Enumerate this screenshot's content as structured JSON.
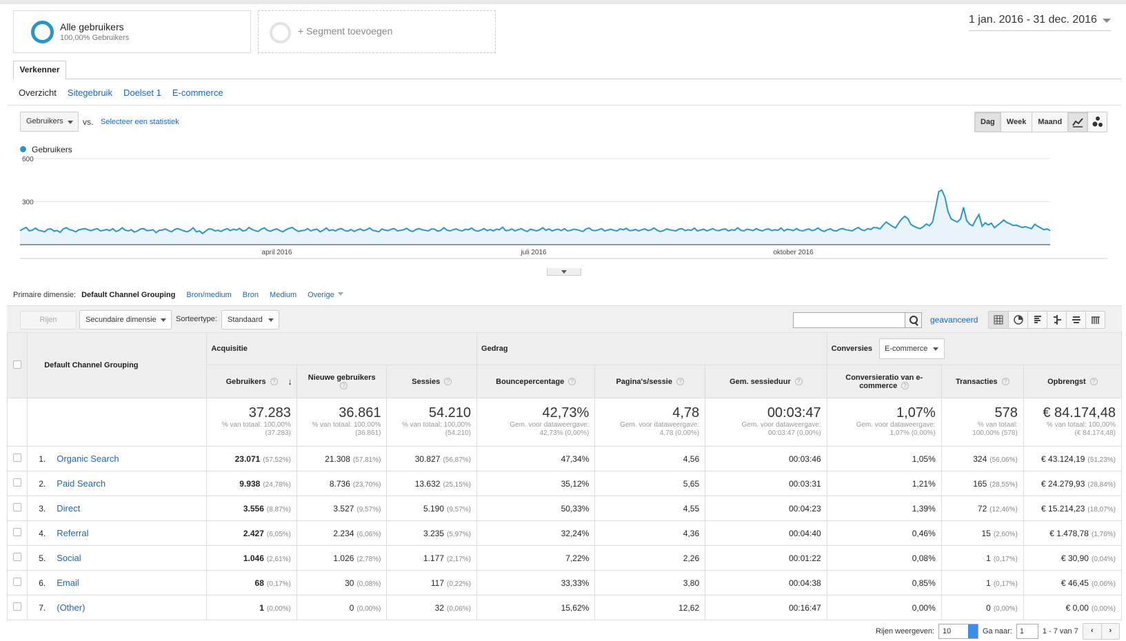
{
  "segments": {
    "all_users_title": "Alle gebruikers",
    "all_users_sub": "100,00% Gebruikers",
    "add_segment": "+ Segment toevoegen"
  },
  "date_range": "1 jan. 2016 - 31 dec. 2016",
  "tabs": {
    "explorer": "Verkenner"
  },
  "subnav": [
    "Overzicht",
    "Sitegebruik",
    "Doelset 1",
    "E-commerce"
  ],
  "metric_selector": {
    "value": "Gebruikers",
    "vs": "vs.",
    "select_stat": "Selecteer een statistiek"
  },
  "period_buttons": [
    "Dag",
    "Week",
    "Maand"
  ],
  "period_active": "Dag",
  "chart_data": {
    "type": "line",
    "series": [
      {
        "name": "Gebruikers",
        "color": "#2a95c8"
      }
    ],
    "y_ticks": [
      "600",
      "300"
    ],
    "ylim": [
      0,
      600
    ],
    "x_labels": [
      "april 2016",
      "juli 2016",
      "oktober 2016"
    ],
    "x_range": [
      "2016-01-01",
      "2016-12-31"
    ],
    "values": [
      98,
      110,
      120,
      96,
      102,
      115,
      100,
      96,
      90,
      108,
      110,
      94,
      99,
      86,
      110,
      118,
      104,
      100,
      90,
      103,
      108,
      112,
      104,
      98,
      106,
      112,
      96,
      100,
      106,
      98,
      112,
      92,
      100,
      118,
      102,
      96,
      104,
      88,
      96,
      110,
      112,
      98,
      100,
      104,
      84,
      100,
      102,
      110,
      98,
      90,
      106,
      112,
      104,
      96,
      90,
      100,
      118,
      90,
      96,
      78,
      94,
      110,
      108,
      96,
      100,
      92,
      104,
      112,
      98,
      108,
      102,
      114,
      96,
      100,
      120,
      106,
      98,
      92,
      108,
      116,
      100,
      94,
      104,
      110,
      98,
      90,
      104,
      114,
      120,
      104,
      92,
      98,
      100,
      112,
      96,
      104,
      108,
      90,
      100,
      116,
      98,
      104,
      96,
      108,
      112,
      98,
      94,
      106,
      92,
      102,
      110,
      98,
      104,
      116,
      100,
      96,
      90,
      110,
      102,
      98,
      108,
      112,
      96,
      100,
      104,
      114,
      98,
      92,
      106,
      112,
      104,
      100,
      96,
      110,
      108,
      94,
      100,
      118,
      102,
      96,
      104,
      110,
      100,
      96,
      108,
      104,
      116,
      100,
      94,
      102,
      112,
      98,
      106,
      96,
      108,
      104,
      122,
      98,
      100,
      110,
      96,
      104,
      112,
      100,
      92,
      108,
      102,
      96,
      104,
      118,
      100,
      110,
      96,
      104,
      108,
      98,
      112,
      96,
      100,
      108,
      104,
      98,
      92,
      110,
      116,
      100,
      98,
      104,
      112,
      96,
      102,
      108,
      100,
      96,
      110,
      104,
      114,
      98,
      100,
      106,
      96,
      104,
      110,
      98,
      104,
      116,
      100,
      92,
      98,
      110,
      104,
      100,
      96,
      108,
      112,
      98,
      104,
      100,
      116,
      96,
      102,
      108,
      96,
      104,
      112,
      100,
      98,
      106,
      110,
      96,
      104,
      100,
      118,
      100,
      96,
      108,
      104,
      98,
      112,
      102,
      96,
      106,
      110,
      98,
      104,
      100,
      116,
      96,
      108,
      104,
      98,
      112,
      100,
      96,
      104,
      110,
      98,
      104,
      116,
      100,
      92,
      104,
      110,
      98,
      96,
      108,
      112,
      104,
      100,
      96,
      110,
      120,
      104,
      98,
      112,
      106,
      120,
      118,
      110,
      136,
      158,
      142,
      128,
      116,
      150,
      178,
      198,
      182,
      140,
      128,
      118,
      112,
      126,
      144,
      132,
      158,
      260,
      370,
      380,
      330,
      230,
      180,
      168,
      158,
      178,
      260,
      168,
      142,
      132,
      176,
      210,
      128,
      152,
      138,
      150,
      118,
      136,
      152,
      172,
      154,
      146,
      134,
      136,
      128,
      120,
      126,
      118,
      112,
      142,
      128,
      116,
      104,
      110,
      98
    ]
  },
  "primary_dimension": {
    "label": "Primaire dimensie:",
    "current": "Default Channel Grouping",
    "links": [
      "Bron/medium",
      "Bron",
      "Medium",
      "Overige"
    ]
  },
  "toolbar": {
    "rows_btn": "Rijen weergeven",
    "secondary_dim": "Secundaire dimensie",
    "sort_label": "Sorteertype:",
    "sort_value": "Standaard",
    "search_placeholder": "",
    "advanced": "geavanceerd"
  },
  "table": {
    "dimension_header": "Default Channel Grouping",
    "groups": {
      "acq": "Acquisitie",
      "beh": "Gedrag",
      "conv": "Conversies",
      "conv_sel": "E-commerce"
    },
    "columns": [
      "Gebruikers",
      "Nieuwe gebruikers",
      "Sessies",
      "Bouncepercentage",
      "Pagina's/sessie",
      "Gem. sessieduur",
      "Conversieratio van e-commerce",
      "Transacties",
      "Opbrengst"
    ],
    "totals": [
      {
        "v": "37.283",
        "s1": "% van totaal: 100,00%",
        "s2": "(37.283)"
      },
      {
        "v": "36.861",
        "s1": "% van totaal: 100,00%",
        "s2": "(36.861)"
      },
      {
        "v": "54.210",
        "s1": "% van totaal: 100,00%",
        "s2": "(54.210)"
      },
      {
        "v": "42,73%",
        "s1": "Gem. voor dataweergave:",
        "s2": "42,73% (0,00%)"
      },
      {
        "v": "4,78",
        "s1": "Gem. voor dataweergave:",
        "s2": "4,78 (0,00%)"
      },
      {
        "v": "00:03:47",
        "s1": "Gem. voor dataweergave:",
        "s2": "00:03:47 (0,00%)"
      },
      {
        "v": "1,07%",
        "s1": "Gem. voor dataweergave:",
        "s2": "1,07% (0,00%)"
      },
      {
        "v": "578",
        "s1": "% van totaal:",
        "s2": "100,00% (578)"
      },
      {
        "v": "€ 84.174,48",
        "s1": "% van totaal: 100,00%",
        "s2": "(€ 84.174,48)"
      }
    ],
    "rows": [
      {
        "idx": "1.",
        "name": "Organic Search",
        "users": "23.071",
        "users_p": "(57,52%)",
        "new": "21.308",
        "new_p": "(57,81%)",
        "sess": "30.827",
        "sess_p": "(56,87%)",
        "bounce": "47,34%",
        "pps": "4,56",
        "dur": "00:03:46",
        "conv": "1,05%",
        "trans": "324",
        "trans_p": "(56,06%)",
        "rev": "€ 43.124,19",
        "rev_p": "(51,23%)"
      },
      {
        "idx": "2.",
        "name": "Paid Search",
        "users": "9.938",
        "users_p": "(24,78%)",
        "new": "8.736",
        "new_p": "(23,70%)",
        "sess": "13.632",
        "sess_p": "(25,15%)",
        "bounce": "35,12%",
        "pps": "5,65",
        "dur": "00:03:31",
        "conv": "1,21%",
        "trans": "165",
        "trans_p": "(28,55%)",
        "rev": "€ 24.279,93",
        "rev_p": "(28,84%)"
      },
      {
        "idx": "3.",
        "name": "Direct",
        "users": "3.556",
        "users_p": "(8,87%)",
        "new": "3.527",
        "new_p": "(9,57%)",
        "sess": "5.190",
        "sess_p": "(9,57%)",
        "bounce": "50,33%",
        "pps": "4,55",
        "dur": "00:04:23",
        "conv": "1,39%",
        "trans": "72",
        "trans_p": "(12,46%)",
        "rev": "€ 15.214,23",
        "rev_p": "(18,07%)"
      },
      {
        "idx": "4.",
        "name": "Referral",
        "users": "2.427",
        "users_p": "(6,05%)",
        "new": "2.234",
        "new_p": "(6,06%)",
        "sess": "3.235",
        "sess_p": "(5,97%)",
        "bounce": "32,24%",
        "pps": "4,36",
        "dur": "00:04:40",
        "conv": "0,46%",
        "trans": "15",
        "trans_p": "(2,60%)",
        "rev": "€ 1.478,78",
        "rev_p": "(1,76%)"
      },
      {
        "idx": "5.",
        "name": "Social",
        "users": "1.046",
        "users_p": "(2,61%)",
        "new": "1.026",
        "new_p": "(2,78%)",
        "sess": "1.177",
        "sess_p": "(2,17%)",
        "bounce": "7,22%",
        "pps": "2,26",
        "dur": "00:01:22",
        "conv": "0,08%",
        "trans": "1",
        "trans_p": "(0,17%)",
        "rev": "€ 30,90",
        "rev_p": "(0,04%)"
      },
      {
        "idx": "6.",
        "name": "Email",
        "users": "68",
        "users_p": "(0,17%)",
        "new": "30",
        "new_p": "(0,08%)",
        "sess": "117",
        "sess_p": "(0,22%)",
        "bounce": "33,33%",
        "pps": "3,80",
        "dur": "00:04:38",
        "conv": "0,85%",
        "trans": "1",
        "trans_p": "(0,17%)",
        "rev": "€ 46,45",
        "rev_p": "(0,06%)"
      },
      {
        "idx": "7.",
        "name": "(Other)",
        "users": "1",
        "users_p": "(0,00%)",
        "new": "0",
        "new_p": "(0,00%)",
        "sess": "32",
        "sess_p": "(0,06%)",
        "bounce": "15,62%",
        "pps": "12,62",
        "dur": "00:16:47",
        "conv": "0,00%",
        "trans": "0",
        "trans_p": "(0,00%)",
        "rev": "€ 0,00",
        "rev_p": "(0,00%)"
      }
    ]
  },
  "pager": {
    "rows_label": "Rijen weergeven:",
    "rows_value": "10",
    "goto_label": "Ga naar:",
    "goto_value": "1",
    "range": "1 - 7 van 7",
    "prev": "‹",
    "next": "›"
  }
}
